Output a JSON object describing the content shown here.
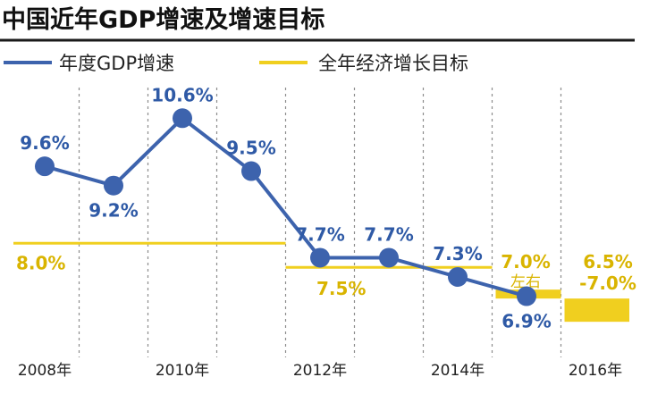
{
  "colors": {
    "gdp_line": "#3d63ad",
    "gdp_label": "#2f5aa6",
    "target": "#f0cf1f",
    "target_label": "#d9b400",
    "grid": "#8c8c8c",
    "title_rule": "#1a1a1a"
  },
  "chart_data": {
    "type": "line",
    "title": "中国近年GDP增速及增速目标",
    "x": [
      2008,
      2009,
      2010,
      2011,
      2012,
      2013,
      2014,
      2015
    ],
    "series": [
      {
        "name": "年度GDP增速",
        "values": [
          9.6,
          9.2,
          10.6,
          9.5,
          7.7,
          7.7,
          7.3,
          6.9
        ],
        "labels": [
          "9.6%",
          "9.2%",
          "10.6%",
          "9.5%",
          "7.7%",
          "7.7%",
          "7.3%",
          "6.9%"
        ]
      }
    ],
    "targets": {
      "name": "全年经济增长目标",
      "segments": [
        {
          "from": 2008,
          "to": 2012,
          "value": 8.0,
          "label": "8.0%"
        },
        {
          "from": 2012,
          "to": 2015,
          "value": 7.5,
          "label": "7.5%"
        },
        {
          "from": 2015,
          "to": 2016,
          "value": 7.0,
          "label": "7.0%",
          "note": "左右"
        },
        {
          "from": 2016,
          "to": 2017,
          "range": [
            6.5,
            7.0
          ],
          "label_top": "6.5%",
          "label_bottom": "-7.0%"
        }
      ]
    },
    "x_tick_labels": [
      {
        "year": 2008,
        "label": "2008年"
      },
      {
        "year": 2010,
        "label": "2010年"
      },
      {
        "year": 2012,
        "label": "2012年"
      },
      {
        "year": 2014,
        "label": "2014年"
      },
      {
        "year": 2016,
        "label": "2016年"
      }
    ],
    "ylim": [
      6.0,
      11.2
    ],
    "legend_position": "top-left",
    "grid": "vertical dashed"
  }
}
